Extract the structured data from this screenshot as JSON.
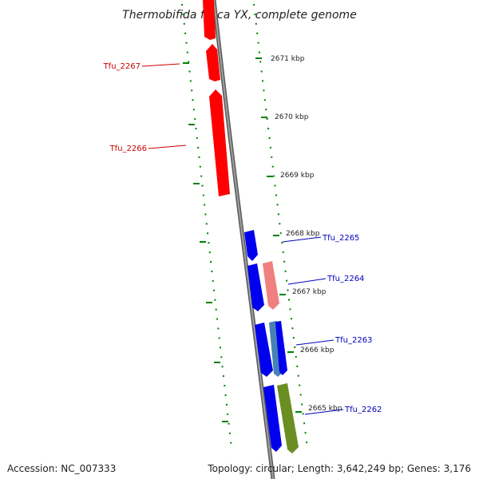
{
  "title": "Thermobifida fusca YX, complete genome",
  "footer": {
    "accession": "Accession: NC_007333",
    "topology": "Topology: circular; Length: 3,642,249 bp; Genes: 3,176"
  },
  "kbp_labels": [
    "2671 kbp",
    "2670 kbp",
    "2669 kbp",
    "2668 kbp",
    "2667 kbp",
    "2666 kbp",
    "2665 kbp"
  ],
  "gene_labels": {
    "reverse": [
      "Tfu_2267",
      "Tfu_2266"
    ],
    "forward": [
      "Tfu_2265",
      "Tfu_2264",
      "Tfu_2263",
      "Tfu_2262"
    ]
  },
  "colors": {
    "reverse_strand": "#ff0000",
    "forward_strand": "#0000ee",
    "light_red": "#f08080",
    "steel_blue": "#4682b4",
    "olive_green": "#6b8e23",
    "backbone": "#777777",
    "ticks": "#008000",
    "reverse_label": "#cc0000",
    "forward_label": "#0000bb"
  }
}
